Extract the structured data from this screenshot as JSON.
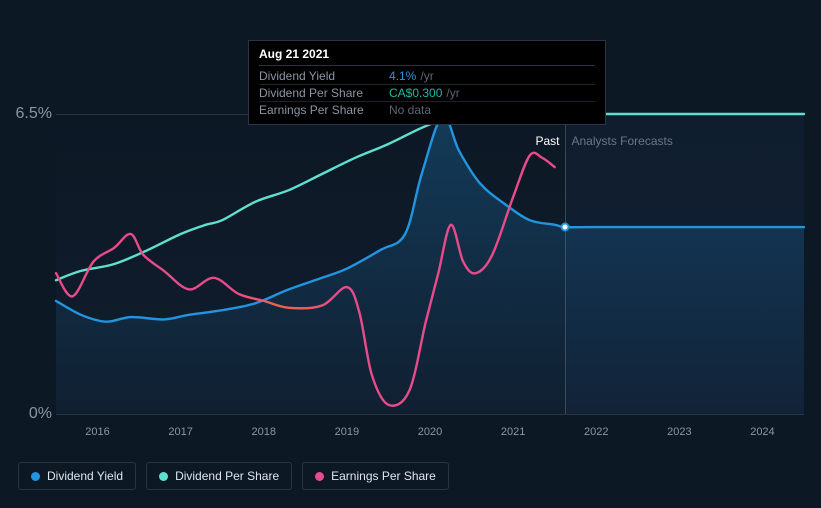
{
  "tooltip": {
    "date": "Aug 21 2021",
    "rows": [
      {
        "label": "Dividend Yield",
        "value": "4.1%",
        "unit": "/yr",
        "value_color": "#2394df"
      },
      {
        "label": "Dividend Per Share",
        "value": "CA$0.300",
        "unit": "/yr",
        "value_color": "#1db9a8"
      },
      {
        "label": "Earnings Per Share",
        "value": "No data",
        "unit": "",
        "value_color": "#5a6775"
      }
    ]
  },
  "chart": {
    "type": "line",
    "background_color": "#0d1825",
    "grid_color": "#2a3442",
    "label_color": "#8a96a5",
    "y_axis": {
      "min": 0,
      "max": 6.5,
      "ticks": [
        {
          "value": 6.5,
          "label": "6.5%"
        },
        {
          "value": 0,
          "label": "0%"
        }
      ]
    },
    "x_axis": {
      "min": 2015.5,
      "max": 2024.5,
      "ticks": [
        2016,
        2017,
        2018,
        2019,
        2020,
        2021,
        2022,
        2023,
        2024
      ]
    },
    "divider_x": 2021.63,
    "past_label": "Past",
    "forecast_label": "Analysts Forecasts",
    "series": [
      {
        "id": "dividend_yield",
        "name": "Dividend Yield",
        "color": "#2394df",
        "fill": true,
        "width": 2.4,
        "marker_x": 2021.63,
        "marker_y": 4.05,
        "points": [
          [
            2015.5,
            2.45
          ],
          [
            2015.8,
            2.15
          ],
          [
            2016.1,
            2.0
          ],
          [
            2016.4,
            2.1
          ],
          [
            2016.8,
            2.05
          ],
          [
            2017.1,
            2.15
          ],
          [
            2017.5,
            2.25
          ],
          [
            2017.9,
            2.4
          ],
          [
            2018.3,
            2.7
          ],
          [
            2018.7,
            2.95
          ],
          [
            2019.0,
            3.15
          ],
          [
            2019.4,
            3.55
          ],
          [
            2019.7,
            3.9
          ],
          [
            2019.9,
            5.2
          ],
          [
            2020.15,
            6.45
          ],
          [
            2020.35,
            5.7
          ],
          [
            2020.6,
            5.0
          ],
          [
            2020.9,
            4.55
          ],
          [
            2021.2,
            4.2
          ],
          [
            2021.5,
            4.1
          ],
          [
            2021.63,
            4.05
          ],
          [
            2022.0,
            4.05
          ],
          [
            2023.0,
            4.05
          ],
          [
            2024.0,
            4.05
          ],
          [
            2024.5,
            4.05
          ]
        ]
      },
      {
        "id": "dividend_per_share",
        "name": "Dividend Per Share",
        "color": "#5fe0cf",
        "fill": false,
        "width": 2.4,
        "marker_x": 2021.63,
        "marker_y": 6.5,
        "points": [
          [
            2015.5,
            2.9
          ],
          [
            2015.8,
            3.1
          ],
          [
            2016.2,
            3.25
          ],
          [
            2016.6,
            3.55
          ],
          [
            2017.0,
            3.9
          ],
          [
            2017.3,
            4.1
          ],
          [
            2017.5,
            4.2
          ],
          [
            2017.9,
            4.6
          ],
          [
            2018.3,
            4.85
          ],
          [
            2018.7,
            5.2
          ],
          [
            2019.1,
            5.55
          ],
          [
            2019.5,
            5.85
          ],
          [
            2019.9,
            6.2
          ],
          [
            2020.2,
            6.4
          ],
          [
            2020.5,
            6.5
          ],
          [
            2021.0,
            6.5
          ],
          [
            2021.63,
            6.5
          ],
          [
            2022.5,
            6.5
          ],
          [
            2023.5,
            6.5
          ],
          [
            2024.5,
            6.5
          ]
        ]
      },
      {
        "id": "earnings_per_share",
        "name": "Earnings Per Share",
        "color_stops": [
          {
            "offset": 0,
            "color": "#e84b8a"
          },
          {
            "offset": 0.36,
            "color": "#e84b8a"
          },
          {
            "offset": 0.44,
            "color": "#f0614d"
          },
          {
            "offset": 0.49,
            "color": "#f0614d"
          },
          {
            "offset": 0.56,
            "color": "#e84b8a"
          },
          {
            "offset": 1,
            "color": "#e84b8a"
          }
        ],
        "fill": false,
        "width": 2.4,
        "points": [
          [
            2015.5,
            3.05
          ],
          [
            2015.7,
            2.55
          ],
          [
            2015.95,
            3.3
          ],
          [
            2016.2,
            3.6
          ],
          [
            2016.4,
            3.9
          ],
          [
            2016.55,
            3.45
          ],
          [
            2016.8,
            3.1
          ],
          [
            2017.1,
            2.7
          ],
          [
            2017.4,
            2.95
          ],
          [
            2017.7,
            2.6
          ],
          [
            2018.0,
            2.45
          ],
          [
            2018.3,
            2.3
          ],
          [
            2018.7,
            2.35
          ],
          [
            2019.0,
            2.75
          ],
          [
            2019.15,
            2.2
          ],
          [
            2019.3,
            0.85
          ],
          [
            2019.5,
            0.2
          ],
          [
            2019.75,
            0.5
          ],
          [
            2019.95,
            2.0
          ],
          [
            2020.1,
            3.05
          ],
          [
            2020.25,
            4.1
          ],
          [
            2020.4,
            3.3
          ],
          [
            2020.55,
            3.05
          ],
          [
            2020.75,
            3.45
          ],
          [
            2021.0,
            4.7
          ],
          [
            2021.2,
            5.6
          ],
          [
            2021.35,
            5.55
          ],
          [
            2021.5,
            5.35
          ]
        ]
      }
    ]
  },
  "legend": [
    {
      "label": "Dividend Yield",
      "color": "#2394df"
    },
    {
      "label": "Dividend Per Share",
      "color": "#5fe0cf"
    },
    {
      "label": "Earnings Per Share",
      "color": "#e84b8a"
    }
  ]
}
